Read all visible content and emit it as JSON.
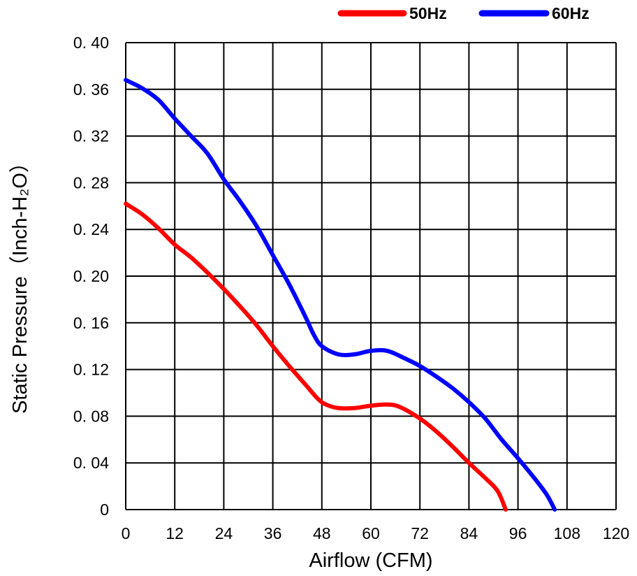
{
  "chart_data": {
    "type": "line",
    "title": "",
    "xlabel": "Airflow (CFM)",
    "ylabel": "Static Pressure（Inch-H₂O）",
    "xlim": [
      0,
      120
    ],
    "ylim": [
      0,
      0.4
    ],
    "grid": true,
    "legend_position": "top-right",
    "x_ticks": [
      "0",
      "12",
      "24",
      "36",
      "48",
      "60",
      "72",
      "84",
      "96",
      "108",
      "120"
    ],
    "y_ticks": [
      "0",
      "0. 04",
      "0. 08",
      "0. 12",
      "0. 16",
      "0. 20",
      "0. 24",
      "0. 28",
      "0. 32",
      "0. 36",
      "0. 40"
    ],
    "series": [
      {
        "name": "50Hz",
        "color": "#ff0000",
        "points": [
          [
            0,
            0.262
          ],
          [
            4,
            0.253
          ],
          [
            8,
            0.241
          ],
          [
            12,
            0.227
          ],
          [
            16,
            0.216
          ],
          [
            20,
            0.203
          ],
          [
            24,
            0.189
          ],
          [
            28,
            0.174
          ],
          [
            32,
            0.158
          ],
          [
            36,
            0.14
          ],
          [
            40,
            0.123
          ],
          [
            44,
            0.107
          ],
          [
            47,
            0.095
          ],
          [
            49,
            0.09
          ],
          [
            52,
            0.087
          ],
          [
            56,
            0.087
          ],
          [
            60,
            0.089
          ],
          [
            64,
            0.09
          ],
          [
            67,
            0.088
          ],
          [
            72,
            0.078
          ],
          [
            76,
            0.067
          ],
          [
            80,
            0.054
          ],
          [
            84,
            0.04
          ],
          [
            88,
            0.027
          ],
          [
            91,
            0.016
          ],
          [
            93,
            0.0
          ]
        ]
      },
      {
        "name": "60Hz",
        "color": "#0000ff",
        "points": [
          [
            0,
            0.368
          ],
          [
            4,
            0.361
          ],
          [
            8,
            0.351
          ],
          [
            12,
            0.335
          ],
          [
            16,
            0.32
          ],
          [
            20,
            0.305
          ],
          [
            24,
            0.283
          ],
          [
            28,
            0.264
          ],
          [
            32,
            0.243
          ],
          [
            36,
            0.218
          ],
          [
            40,
            0.193
          ],
          [
            44,
            0.165
          ],
          [
            46,
            0.15
          ],
          [
            48,
            0.14
          ],
          [
            52,
            0.133
          ],
          [
            56,
            0.133
          ],
          [
            60,
            0.136
          ],
          [
            64,
            0.136
          ],
          [
            68,
            0.13
          ],
          [
            72,
            0.123
          ],
          [
            76,
            0.114
          ],
          [
            80,
            0.104
          ],
          [
            84,
            0.092
          ],
          [
            88,
            0.078
          ],
          [
            92,
            0.06
          ],
          [
            96,
            0.044
          ],
          [
            100,
            0.027
          ],
          [
            103,
            0.013
          ],
          [
            105,
            0.0
          ]
        ]
      }
    ]
  }
}
